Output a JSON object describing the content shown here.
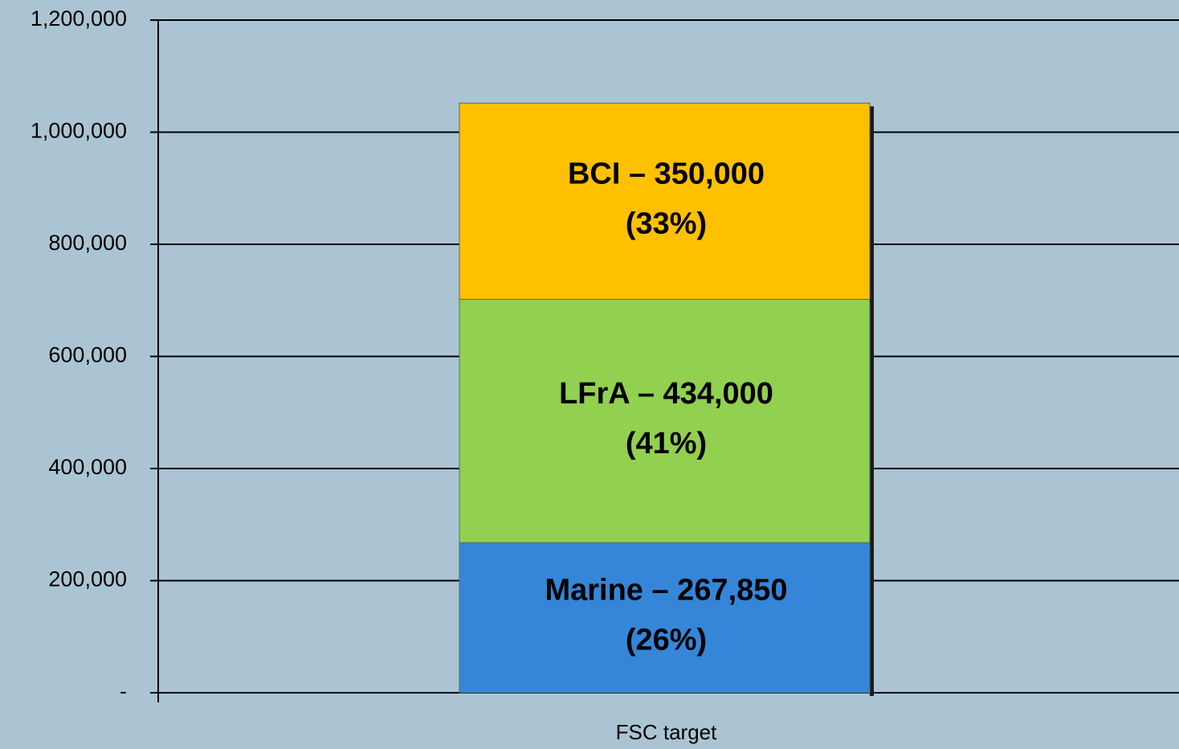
{
  "chart_data": {
    "type": "stacked_bar",
    "categories": [
      "FSC target"
    ],
    "series": [
      {
        "color": "#3586d8",
        "values": [
          267850
        ],
        "value_labels": [
          "Marine – 267,850"
        ],
        "percent_labels": [
          "(26%)"
        ]
      },
      {
        "color": "#92d050",
        "values": [
          434000
        ],
        "value_labels": [
          "LFrA – 434,000"
        ],
        "percent_labels": [
          "(41%)"
        ]
      },
      {
        "color": "#ffc000",
        "values": [
          350000
        ],
        "value_labels": [
          "BCI – 350,000"
        ],
        "percent_labels": [
          "(33%)"
        ]
      }
    ],
    "ylim": [
      0,
      1200000
    ],
    "yticks": [
      {
        "value": 0,
        "label": "-"
      },
      {
        "value": 200000,
        "label": "200,000"
      },
      {
        "value": 400000,
        "label": "400,000"
      },
      {
        "value": 600000,
        "label": "600,000"
      },
      {
        "value": 800000,
        "label": "800,000"
      },
      {
        "value": 1000000,
        "label": "1,000,000"
      },
      {
        "value": 1200000,
        "label": "1,200,000"
      }
    ],
    "grid": true
  }
}
